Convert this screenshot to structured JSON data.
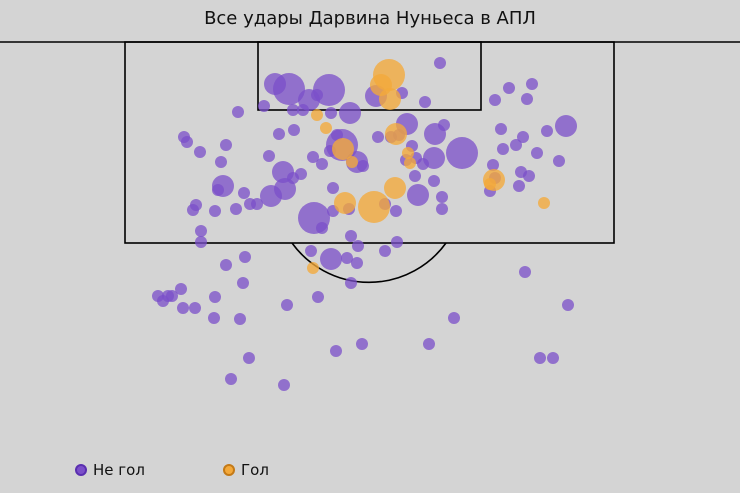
{
  "chart_data": {
    "type": "scatter",
    "title": "Все удары Дарвина Нуньеса в АПЛ",
    "legend": [
      {
        "key": "miss",
        "label": "Не гол",
        "color": "#7b4fc9",
        "edge": "#5a2fb0"
      },
      {
        "key": "goal",
        "label": "Гол",
        "color": "#f4a93a",
        "edge": "#c47a17"
      }
    ],
    "legend_position": "bottom-left",
    "axes": "none",
    "size_encoding": "xG",
    "series": [
      {
        "name": "Не гол",
        "points": [
          [
            289,
            89,
            3
          ],
          [
            329,
            90,
            3
          ],
          [
            275,
            84,
            2
          ],
          [
            309,
            100,
            2
          ],
          [
            317,
            95,
            1
          ],
          [
            350,
            113,
            2
          ],
          [
            440,
            63,
            1
          ],
          [
            376,
            96,
            2
          ],
          [
            402,
            93,
            1
          ],
          [
            425,
            102,
            1
          ],
          [
            495,
            100,
            1
          ],
          [
            509,
            88,
            1
          ],
          [
            532,
            84,
            1
          ],
          [
            527,
            99,
            1
          ],
          [
            238,
            112,
            1
          ],
          [
            264,
            106,
            1
          ],
          [
            293,
            110,
            1
          ],
          [
            303,
            110,
            1
          ],
          [
            331,
            113,
            1
          ],
          [
            184,
            137,
            1
          ],
          [
            187,
            142,
            1
          ],
          [
            200,
            152,
            1
          ],
          [
            226,
            145,
            1
          ],
          [
            221,
            162,
            1
          ],
          [
            279,
            134,
            1
          ],
          [
            294,
            130,
            1
          ],
          [
            269,
            156,
            1
          ],
          [
            313,
            157,
            1
          ],
          [
            337,
            135,
            1
          ],
          [
            330,
            151,
            1
          ],
          [
            342,
            145,
            3
          ],
          [
            357,
            162,
            2
          ],
          [
            363,
            166,
            1
          ],
          [
            378,
            137,
            1
          ],
          [
            391,
            137,
            1
          ],
          [
            407,
            124,
            2
          ],
          [
            399,
            135,
            1
          ],
          [
            412,
            146,
            1
          ],
          [
            406,
            160,
            1
          ],
          [
            416,
            158,
            1
          ],
          [
            423,
            164,
            1
          ],
          [
            435,
            134,
            2
          ],
          [
            444,
            125,
            1
          ],
          [
            462,
            153,
            3
          ],
          [
            434,
            158,
            2
          ],
          [
            501,
            129,
            1
          ],
          [
            523,
            137,
            1
          ],
          [
            516,
            145,
            1
          ],
          [
            503,
            149,
            1
          ],
          [
            537,
            153,
            1
          ],
          [
            547,
            131,
            1
          ],
          [
            566,
            126,
            2
          ],
          [
            559,
            161,
            1
          ],
          [
            493,
            165,
            1
          ],
          [
            495,
            178,
            1
          ],
          [
            521,
            172,
            1
          ],
          [
            519,
            186,
            1
          ],
          [
            529,
            176,
            1
          ],
          [
            490,
            191,
            1
          ],
          [
            223,
            186,
            2
          ],
          [
            218,
            190,
            1
          ],
          [
            244,
            193,
            1
          ],
          [
            283,
            172,
            2
          ],
          [
            293,
            178,
            1
          ],
          [
            301,
            174,
            1
          ],
          [
            322,
            164,
            1
          ],
          [
            285,
            189,
            2
          ],
          [
            271,
            196,
            2
          ],
          [
            257,
            204,
            1
          ],
          [
            250,
            204,
            1
          ],
          [
            236,
            209,
            1
          ],
          [
            215,
            211,
            1
          ],
          [
            196,
            205,
            1
          ],
          [
            193,
            210,
            1
          ],
          [
            333,
            188,
            1
          ],
          [
            349,
            209,
            1
          ],
          [
            333,
            211,
            1
          ],
          [
            314,
            218,
            3
          ],
          [
            322,
            228,
            1
          ],
          [
            385,
            204,
            1
          ],
          [
            396,
            211,
            1
          ],
          [
            418,
            195,
            2
          ],
          [
            415,
            176,
            1
          ],
          [
            434,
            181,
            1
          ],
          [
            442,
            197,
            1
          ],
          [
            442,
            209,
            1
          ],
          [
            201,
            231,
            1
          ],
          [
            201,
            242,
            1
          ],
          [
            351,
            236,
            1
          ],
          [
            358,
            246,
            1
          ],
          [
            397,
            242,
            1
          ],
          [
            385,
            251,
            1
          ],
          [
            226,
            265,
            1
          ],
          [
            245,
            257,
            1
          ],
          [
            311,
            251,
            1
          ],
          [
            331,
            259,
            2
          ],
          [
            347,
            258,
            1
          ],
          [
            357,
            263,
            1
          ],
          [
            243,
            283,
            1
          ],
          [
            351,
            283,
            1
          ],
          [
            525,
            272,
            1
          ],
          [
            158,
            296,
            1
          ],
          [
            163,
            301,
            1
          ],
          [
            168,
            296,
            1
          ],
          [
            172,
            296,
            1
          ],
          [
            181,
            289,
            1
          ],
          [
            183,
            308,
            1
          ],
          [
            195,
            308,
            1
          ],
          [
            215,
            297,
            1
          ],
          [
            287,
            305,
            1
          ],
          [
            318,
            297,
            1
          ],
          [
            214,
            318,
            1
          ],
          [
            240,
            319,
            1
          ],
          [
            454,
            318,
            1
          ],
          [
            568,
            305,
            1
          ],
          [
            249,
            358,
            1
          ],
          [
            336,
            351,
            1
          ],
          [
            362,
            344,
            1
          ],
          [
            429,
            344,
            1
          ],
          [
            540,
            358,
            1
          ],
          [
            553,
            358,
            1
          ],
          [
            231,
            379,
            1
          ],
          [
            284,
            385,
            1
          ]
        ]
      },
      {
        "name": "Гол",
        "points": [
          [
            389,
            75,
            3
          ],
          [
            381,
            85,
            2
          ],
          [
            390,
            99,
            2
          ],
          [
            317,
            115,
            1
          ],
          [
            326,
            128,
            1
          ],
          [
            396,
            134,
            2
          ],
          [
            343,
            149,
            2
          ],
          [
            352,
            162,
            1
          ],
          [
            408,
            153,
            1
          ],
          [
            410,
            163,
            1
          ],
          [
            494,
            180,
            2
          ],
          [
            490,
            184,
            1
          ],
          [
            395,
            188,
            2
          ],
          [
            374,
            207,
            3
          ],
          [
            345,
            203,
            2
          ],
          [
            544,
            203,
            1
          ],
          [
            313,
            268,
            1
          ]
        ]
      }
    ]
  }
}
